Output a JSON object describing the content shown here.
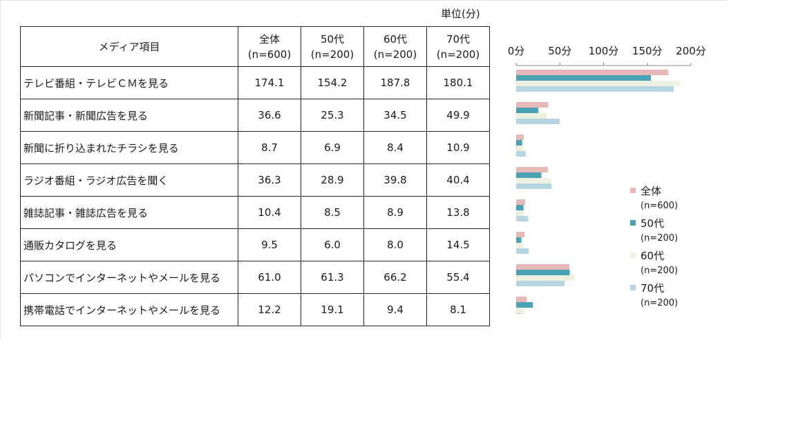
{
  "unit_label": "単位(分)",
  "table": {
    "header_item": "メディア項目",
    "columns": [
      {
        "name": "全体",
        "n": "(n=600)"
      },
      {
        "name": "50代",
        "n": "(n=200)"
      },
      {
        "name": "60代",
        "n": "(n=200)"
      },
      {
        "name": "70代",
        "n": "(n=200)"
      }
    ],
    "rows": [
      {
        "label": "テレビ番組・テレビＣＭを見る",
        "values": [
          "174.1",
          "154.2",
          "187.8",
          "180.1"
        ]
      },
      {
        "label": "新聞記事・新聞広告を見る",
        "values": [
          "36.6",
          "25.3",
          "34.5",
          "49.9"
        ]
      },
      {
        "label": "新聞に折り込まれたチラシを見る",
        "values": [
          "8.7",
          "6.9",
          "8.4",
          "10.9"
        ]
      },
      {
        "label": "ラジオ番組・ラジオ広告を聞く",
        "values": [
          "36.3",
          "28.9",
          "39.8",
          "40.4"
        ]
      },
      {
        "label": "雑誌記事・雑誌広告を見る",
        "values": [
          "10.4",
          "8.5",
          "8.9",
          "13.8"
        ]
      },
      {
        "label": "通販カタログを見る",
        "values": [
          "9.5",
          "6.0",
          "8.0",
          "14.5"
        ]
      },
      {
        "label": "パソコンでインターネットやメールを見る",
        "values": [
          "61.0",
          "61.3",
          "66.2",
          "55.4"
        ]
      },
      {
        "label": "携帯電話でインターネットやメールを見る",
        "values": [
          "12.2",
          "19.1",
          "9.4",
          "8.1"
        ]
      }
    ]
  },
  "chart_data": {
    "type": "bar",
    "orientation": "horizontal",
    "x_ticks": [
      "0分",
      "50分",
      "100分",
      "150分",
      "200分"
    ],
    "xlim": [
      0,
      200
    ],
    "grid": false,
    "legend_position": "right",
    "categories": [
      "テレビ番組・テレビＣＭを見る",
      "新聞記事・新聞広告を見る",
      "新聞に折り込まれたチラシを見る",
      "ラジオ番組・ラジオ広告を聞く",
      "雑誌記事・雑誌広告を見る",
      "通販カタログを見る",
      "パソコンでインターネットやメールを見る",
      "携帯電話でインターネットやメールを見る"
    ],
    "series": [
      {
        "name": "全体",
        "n": "(n=600)",
        "color": "#e6b9b8",
        "values": [
          174.1,
          36.6,
          8.7,
          36.3,
          10.4,
          9.5,
          61.0,
          12.2
        ]
      },
      {
        "name": "50代",
        "n": "(n=200)",
        "color": "#4aa3b5",
        "values": [
          154.2,
          25.3,
          6.9,
          28.9,
          8.5,
          6.0,
          61.3,
          19.1
        ]
      },
      {
        "name": "60代",
        "n": "(n=200)",
        "color": "#ebf1de",
        "values": [
          187.8,
          34.5,
          8.4,
          39.8,
          8.9,
          8.0,
          66.2,
          9.4
        ]
      },
      {
        "name": "70代",
        "n": "(n=200)",
        "color": "#b7d5e0",
        "values": [
          180.1,
          49.9,
          10.9,
          40.4,
          13.8,
          14.5,
          55.4,
          8.1
        ]
      }
    ]
  }
}
